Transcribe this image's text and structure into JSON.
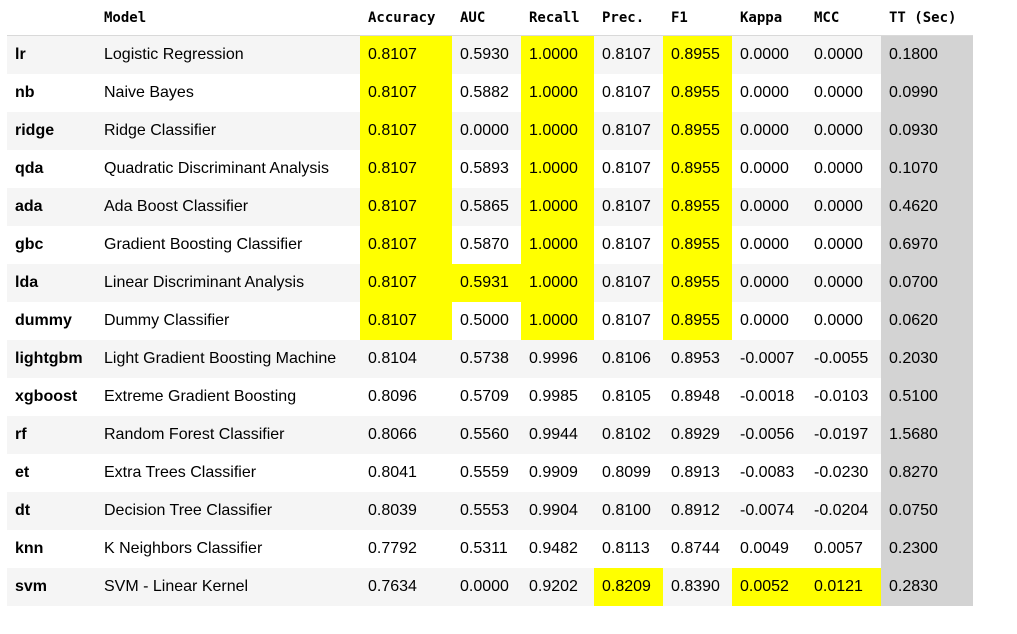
{
  "table": {
    "headers": [
      "",
      "Model",
      "Accuracy",
      "AUC",
      "Recall",
      "Prec.",
      "F1",
      "Kappa",
      "MCC",
      "TT (Sec)"
    ],
    "highlight_color": "#ffff00",
    "tt_color": "#d3d3d3",
    "rows": [
      {
        "id": "lr",
        "model": "Logistic Regression",
        "accuracy": "0.8107",
        "auc": "0.5930",
        "recall": "1.0000",
        "prec": "0.8107",
        "f1": "0.8955",
        "kappa": "0.0000",
        "mcc": "0.0000",
        "tt": "0.1800",
        "hl": [
          "accuracy",
          "recall",
          "f1"
        ]
      },
      {
        "id": "nb",
        "model": "Naive Bayes",
        "accuracy": "0.8107",
        "auc": "0.5882",
        "recall": "1.0000",
        "prec": "0.8107",
        "f1": "0.8955",
        "kappa": "0.0000",
        "mcc": "0.0000",
        "tt": "0.0990",
        "hl": [
          "accuracy",
          "recall",
          "f1"
        ]
      },
      {
        "id": "ridge",
        "model": "Ridge Classifier",
        "accuracy": "0.8107",
        "auc": "0.0000",
        "recall": "1.0000",
        "prec": "0.8107",
        "f1": "0.8955",
        "kappa": "0.0000",
        "mcc": "0.0000",
        "tt": "0.0930",
        "hl": [
          "accuracy",
          "recall",
          "f1"
        ]
      },
      {
        "id": "qda",
        "model": "Quadratic Discriminant Analysis",
        "accuracy": "0.8107",
        "auc": "0.5893",
        "recall": "1.0000",
        "prec": "0.8107",
        "f1": "0.8955",
        "kappa": "0.0000",
        "mcc": "0.0000",
        "tt": "0.1070",
        "hl": [
          "accuracy",
          "recall",
          "f1"
        ]
      },
      {
        "id": "ada",
        "model": "Ada Boost Classifier",
        "accuracy": "0.8107",
        "auc": "0.5865",
        "recall": "1.0000",
        "prec": "0.8107",
        "f1": "0.8955",
        "kappa": "0.0000",
        "mcc": "0.0000",
        "tt": "0.4620",
        "hl": [
          "accuracy",
          "recall",
          "f1"
        ]
      },
      {
        "id": "gbc",
        "model": "Gradient Boosting Classifier",
        "accuracy": "0.8107",
        "auc": "0.5870",
        "recall": "1.0000",
        "prec": "0.8107",
        "f1": "0.8955",
        "kappa": "0.0000",
        "mcc": "0.0000",
        "tt": "0.6970",
        "hl": [
          "accuracy",
          "recall",
          "f1"
        ]
      },
      {
        "id": "lda",
        "model": "Linear Discriminant Analysis",
        "accuracy": "0.8107",
        "auc": "0.5931",
        "recall": "1.0000",
        "prec": "0.8107",
        "f1": "0.8955",
        "kappa": "0.0000",
        "mcc": "0.0000",
        "tt": "0.0700",
        "hl": [
          "accuracy",
          "auc",
          "recall",
          "f1"
        ]
      },
      {
        "id": "dummy",
        "model": "Dummy Classifier",
        "accuracy": "0.8107",
        "auc": "0.5000",
        "recall": "1.0000",
        "prec": "0.8107",
        "f1": "0.8955",
        "kappa": "0.0000",
        "mcc": "0.0000",
        "tt": "0.0620",
        "hl": [
          "accuracy",
          "recall",
          "f1"
        ]
      },
      {
        "id": "lightgbm",
        "model": "Light Gradient Boosting Machine",
        "accuracy": "0.8104",
        "auc": "0.5738",
        "recall": "0.9996",
        "prec": "0.8106",
        "f1": "0.8953",
        "kappa": "-0.0007",
        "mcc": "-0.0055",
        "tt": "0.2030",
        "hl": []
      },
      {
        "id": "xgboost",
        "model": "Extreme Gradient Boosting",
        "accuracy": "0.8096",
        "auc": "0.5709",
        "recall": "0.9985",
        "prec": "0.8105",
        "f1": "0.8948",
        "kappa": "-0.0018",
        "mcc": "-0.0103",
        "tt": "0.5100",
        "hl": []
      },
      {
        "id": "rf",
        "model": "Random Forest Classifier",
        "accuracy": "0.8066",
        "auc": "0.5560",
        "recall": "0.9944",
        "prec": "0.8102",
        "f1": "0.8929",
        "kappa": "-0.0056",
        "mcc": "-0.0197",
        "tt": "1.5680",
        "hl": []
      },
      {
        "id": "et",
        "model": "Extra Trees Classifier",
        "accuracy": "0.8041",
        "auc": "0.5559",
        "recall": "0.9909",
        "prec": "0.8099",
        "f1": "0.8913",
        "kappa": "-0.0083",
        "mcc": "-0.0230",
        "tt": "0.8270",
        "hl": []
      },
      {
        "id": "dt",
        "model": "Decision Tree Classifier",
        "accuracy": "0.8039",
        "auc": "0.5553",
        "recall": "0.9904",
        "prec": "0.8100",
        "f1": "0.8912",
        "kappa": "-0.0074",
        "mcc": "-0.0204",
        "tt": "0.0750",
        "hl": []
      },
      {
        "id": "knn",
        "model": "K Neighbors Classifier",
        "accuracy": "0.7792",
        "auc": "0.5311",
        "recall": "0.9482",
        "prec": "0.8113",
        "f1": "0.8744",
        "kappa": "0.0049",
        "mcc": "0.0057",
        "tt": "0.2300",
        "hl": []
      },
      {
        "id": "svm",
        "model": "SVM - Linear Kernel",
        "accuracy": "0.7634",
        "auc": "0.0000",
        "recall": "0.9202",
        "prec": "0.8209",
        "f1": "0.8390",
        "kappa": "0.0052",
        "mcc": "0.0121",
        "tt": "0.2830",
        "hl": [
          "prec",
          "kappa",
          "mcc"
        ]
      }
    ]
  }
}
